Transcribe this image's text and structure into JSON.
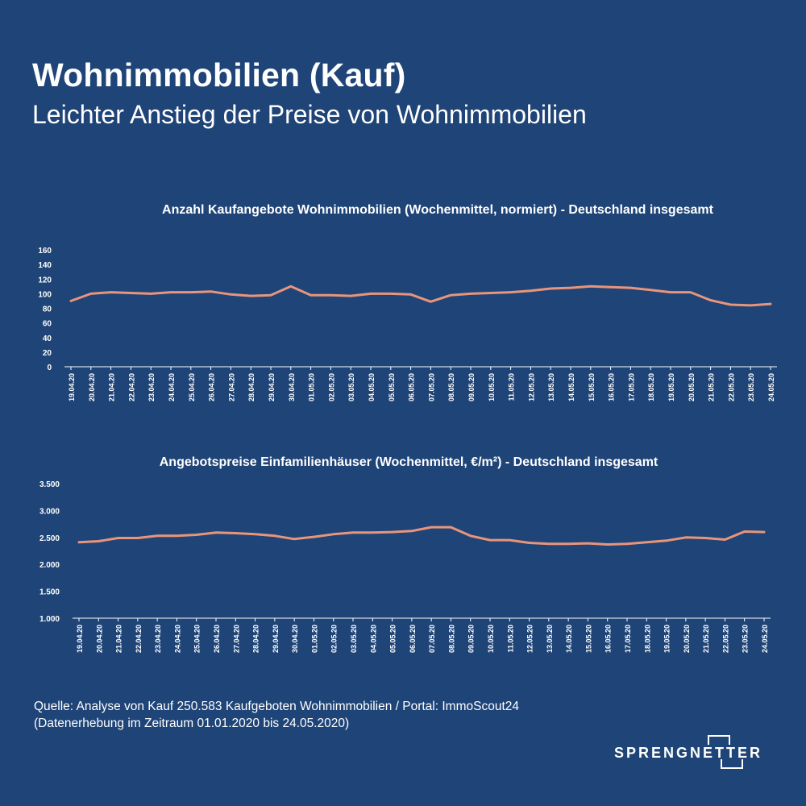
{
  "header": {
    "title": "Wohnimmobilien (Kauf)",
    "subtitle": "Leichter Anstieg der Preise von Wohnimmobilien"
  },
  "colors": {
    "background": "#1f4477",
    "line": "#e8957b",
    "text": "#ffffff"
  },
  "chart_data": [
    {
      "type": "line",
      "title": "Anzahl Kaufangebote Wohnimmobilien (Wochenmittel, normiert) - Deutschland insgesamt",
      "xlabel": "",
      "ylabel": "",
      "ylim": [
        0,
        160
      ],
      "yticks": [
        "0",
        "20",
        "40",
        "60",
        "80",
        "100",
        "120",
        "140",
        "160"
      ],
      "ytick_values": [
        0,
        20,
        40,
        60,
        80,
        100,
        120,
        140,
        160
      ],
      "grid": false,
      "categories": [
        "19.04.20",
        "20.04.20",
        "21.04.20",
        "22.04.20",
        "23.04.20",
        "24.04.20",
        "25.04.20",
        "26.04.20",
        "27.04.20",
        "28.04.20",
        "29.04.20",
        "30.04.20",
        "01.05.20",
        "02.05.20",
        "03.05.20",
        "04.05.20",
        "05.05.20",
        "06.05.20",
        "07.05.20",
        "08.05.20",
        "09.05.20",
        "10.05.20",
        "11.05.20",
        "12.05.20",
        "13.05.20",
        "14.05.20",
        "15.05.20",
        "16.05.20",
        "17.05.20",
        "18.05.20",
        "19.05.20",
        "20.05.20",
        "21.05.20",
        "22.05.20",
        "23.05.20",
        "24.05.20"
      ],
      "values": [
        90,
        100,
        102,
        101,
        100,
        102,
        102,
        103,
        99,
        97,
        98,
        110,
        98,
        98,
        97,
        100,
        100,
        99,
        89,
        98,
        100,
        101,
        102,
        104,
        107,
        108,
        110,
        109,
        108,
        105,
        102,
        102,
        91,
        85,
        84,
        86
      ]
    },
    {
      "type": "line",
      "title": "Angebotspreise Einfamilienhäuser (Wochenmittel, €/m²) - Deutschland insgesamt",
      "xlabel": "",
      "ylabel": "",
      "ylim": [
        1000,
        3500
      ],
      "yticks": [
        "1.000",
        "1.500",
        "2.000",
        "2.500",
        "3.000",
        "3.500"
      ],
      "ytick_values": [
        1000,
        1500,
        2000,
        2500,
        3000,
        3500
      ],
      "grid": false,
      "categories": [
        "19.04.20",
        "20.04.20",
        "21.04.20",
        "22.04.20",
        "23.04.20",
        "24.04.20",
        "25.04.20",
        "26.04.20",
        "27.04.20",
        "28.04.20",
        "29.04.20",
        "30.04.20",
        "01.05.20",
        "02.05.20",
        "03.05.20",
        "04.05.20",
        "05.05.20",
        "06.05.20",
        "07.05.20",
        "08.05.20",
        "09.05.20",
        "10.05.20",
        "11.05.20",
        "12.05.20",
        "13.05.20",
        "14.05.20",
        "15.05.20",
        "16.05.20",
        "17.05.20",
        "18.05.20",
        "19.05.20",
        "20.05.20",
        "21.05.20",
        "22.05.20",
        "23.05.20",
        "24.05.20"
      ],
      "values": [
        2410,
        2430,
        2490,
        2490,
        2530,
        2530,
        2550,
        2590,
        2580,
        2560,
        2530,
        2470,
        2510,
        2560,
        2590,
        2590,
        2600,
        2620,
        2690,
        2690,
        2530,
        2450,
        2450,
        2400,
        2380,
        2380,
        2390,
        2370,
        2380,
        2410,
        2440,
        2500,
        2490,
        2460,
        2610,
        2600
      ]
    }
  ],
  "footer": {
    "source_line1": "Quelle: Analyse von Kauf 250.583 Kaufgeboten Wohnimmobilien / Portal: ImmoScout24",
    "source_line2": "(Datenerhebung im Zeitraum 01.01.2020 bis 24.05.2020)",
    "logo_text": "SPRENGNETTER"
  }
}
